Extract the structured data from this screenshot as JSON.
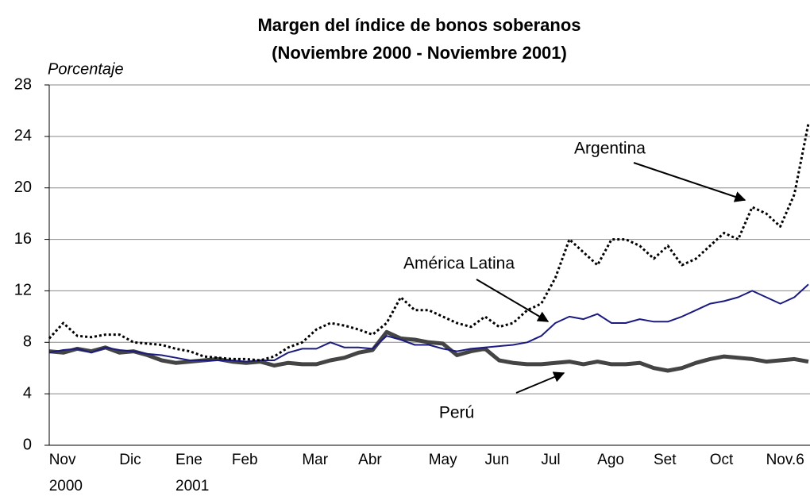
{
  "chart_data": {
    "type": "line",
    "title": "Margen del índice de bonos soberanos",
    "subtitle": "(Noviembre 2000 - Noviembre 2001)",
    "y_label": "Porcentaje",
    "categories": [
      null,
      "Nov\n2000",
      null,
      null,
      null,
      null,
      "Dic",
      null,
      null,
      null,
      "Ene\n2001",
      null,
      null,
      null,
      "Feb",
      null,
      null,
      null,
      null,
      "Mar",
      null,
      null,
      null,
      "Abr",
      null,
      null,
      null,
      null,
      "May",
      null,
      null,
      null,
      "Jun",
      null,
      null,
      null,
      "Jul",
      null,
      null,
      null,
      "Ago",
      null,
      null,
      null,
      "Set",
      null,
      null,
      null,
      "Oct",
      null,
      null,
      null,
      "Nov.6",
      null,
      null
    ],
    "series": [
      {
        "name": "Argentina",
        "color": "#000000",
        "style": "dotted",
        "values": [
          8.3,
          9.5,
          8.5,
          8.4,
          8.6,
          8.6,
          8.0,
          7.9,
          7.8,
          7.5,
          7.3,
          6.9,
          6.8,
          6.7,
          6.7,
          6.6,
          6.9,
          7.6,
          8.0,
          9.0,
          9.5,
          9.3,
          9.0,
          8.6,
          9.5,
          11.5,
          10.5,
          10.5,
          10.0,
          9.5,
          9.2,
          10.0,
          9.2,
          9.5,
          10.5,
          11.0,
          13.0,
          16.0,
          15.0,
          14.0,
          16.0,
          16.0,
          15.5,
          14.5,
          15.5,
          14.0,
          14.5,
          15.5,
          16.5,
          16.0,
          18.5,
          18.0,
          17.0,
          19.5,
          25.0
        ]
      },
      {
        "name": "América Latina",
        "color": "#1a1a80",
        "style": "solid",
        "values": [
          7.2,
          7.4,
          7.5,
          7.2,
          7.6,
          7.4,
          7.3,
          7.1,
          7.0,
          6.8,
          6.6,
          6.6,
          6.6,
          6.6,
          6.5,
          6.6,
          6.6,
          7.2,
          7.5,
          7.5,
          8.0,
          7.6,
          7.6,
          7.5,
          8.5,
          8.2,
          7.8,
          7.8,
          7.5,
          7.3,
          7.5,
          7.6,
          7.7,
          7.8,
          8.0,
          8.5,
          9.5,
          10.0,
          9.8,
          10.2,
          9.5,
          9.5,
          9.8,
          9.6,
          9.6,
          10.0,
          10.5,
          11.0,
          11.2,
          11.5,
          12.0,
          11.5,
          11.0,
          11.5,
          12.5
        ]
      },
      {
        "name": "Perú",
        "color": "#444444",
        "style": "thick",
        "values": [
          7.3,
          7.2,
          7.5,
          7.3,
          7.6,
          7.2,
          7.3,
          7.0,
          6.6,
          6.4,
          6.5,
          6.6,
          6.7,
          6.5,
          6.4,
          6.5,
          6.2,
          6.4,
          6.3,
          6.3,
          6.6,
          6.8,
          7.2,
          7.4,
          8.8,
          8.3,
          8.2,
          8.0,
          7.9,
          7.0,
          7.3,
          7.5,
          6.6,
          6.4,
          6.3,
          6.3,
          6.4,
          6.5,
          6.3,
          6.5,
          6.3,
          6.3,
          6.4,
          6.0,
          5.8,
          6.0,
          6.4,
          6.7,
          6.9,
          6.8,
          6.7,
          6.5,
          6.6,
          6.7,
          6.5
        ]
      }
    ],
    "ylim": [
      0,
      28
    ],
    "yticks": [
      0,
      4,
      8,
      12,
      16,
      20,
      24,
      28
    ],
    "grid": true
  }
}
